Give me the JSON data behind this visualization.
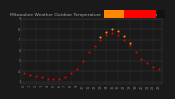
{
  "title": "Milwaukee Weather Outdoor Temperature  vs Heat Index  (24 Hours)",
  "bg_color": "#1a1a1a",
  "plot_bg": "#1a1a1a",
  "grid_color": "#444444",
  "temp_color": "#dd0000",
  "heat_color": "#ff8800",
  "hours": [
    0,
    1,
    2,
    3,
    4,
    5,
    6,
    7,
    8,
    9,
    10,
    11,
    12,
    13,
    14,
    15,
    16,
    17,
    18,
    19,
    20,
    21,
    22,
    23
  ],
  "temp": [
    38,
    36,
    35,
    34,
    33,
    33,
    33,
    34,
    38,
    42,
    50,
    58,
    64,
    70,
    74,
    76,
    74,
    70,
    65,
    58,
    52,
    48,
    44,
    42
  ],
  "heat_index": [
    null,
    null,
    null,
    null,
    null,
    null,
    null,
    null,
    null,
    null,
    null,
    null,
    null,
    72,
    77,
    80,
    78,
    73,
    67,
    null,
    null,
    null,
    null,
    null
  ],
  "ylim": [
    28,
    88
  ],
  "xlim": [
    -0.5,
    23.5
  ],
  "ytick_vals": [
    30,
    40,
    50,
    60,
    70,
    80,
    90
  ],
  "ytick_labels": [
    "3",
    "4",
    "5",
    "6",
    "7",
    "8",
    "9"
  ],
  "title_color": "#aaaaaa",
  "title_fontsize": 3.2,
  "tick_color": "#888888",
  "tick_fontsize": 2.5,
  "marker_size": 1.5,
  "legend_red": "#ff0000",
  "legend_orange": "#ff8800",
  "legend_dark": "#111111",
  "grid_linewidth": 0.3
}
